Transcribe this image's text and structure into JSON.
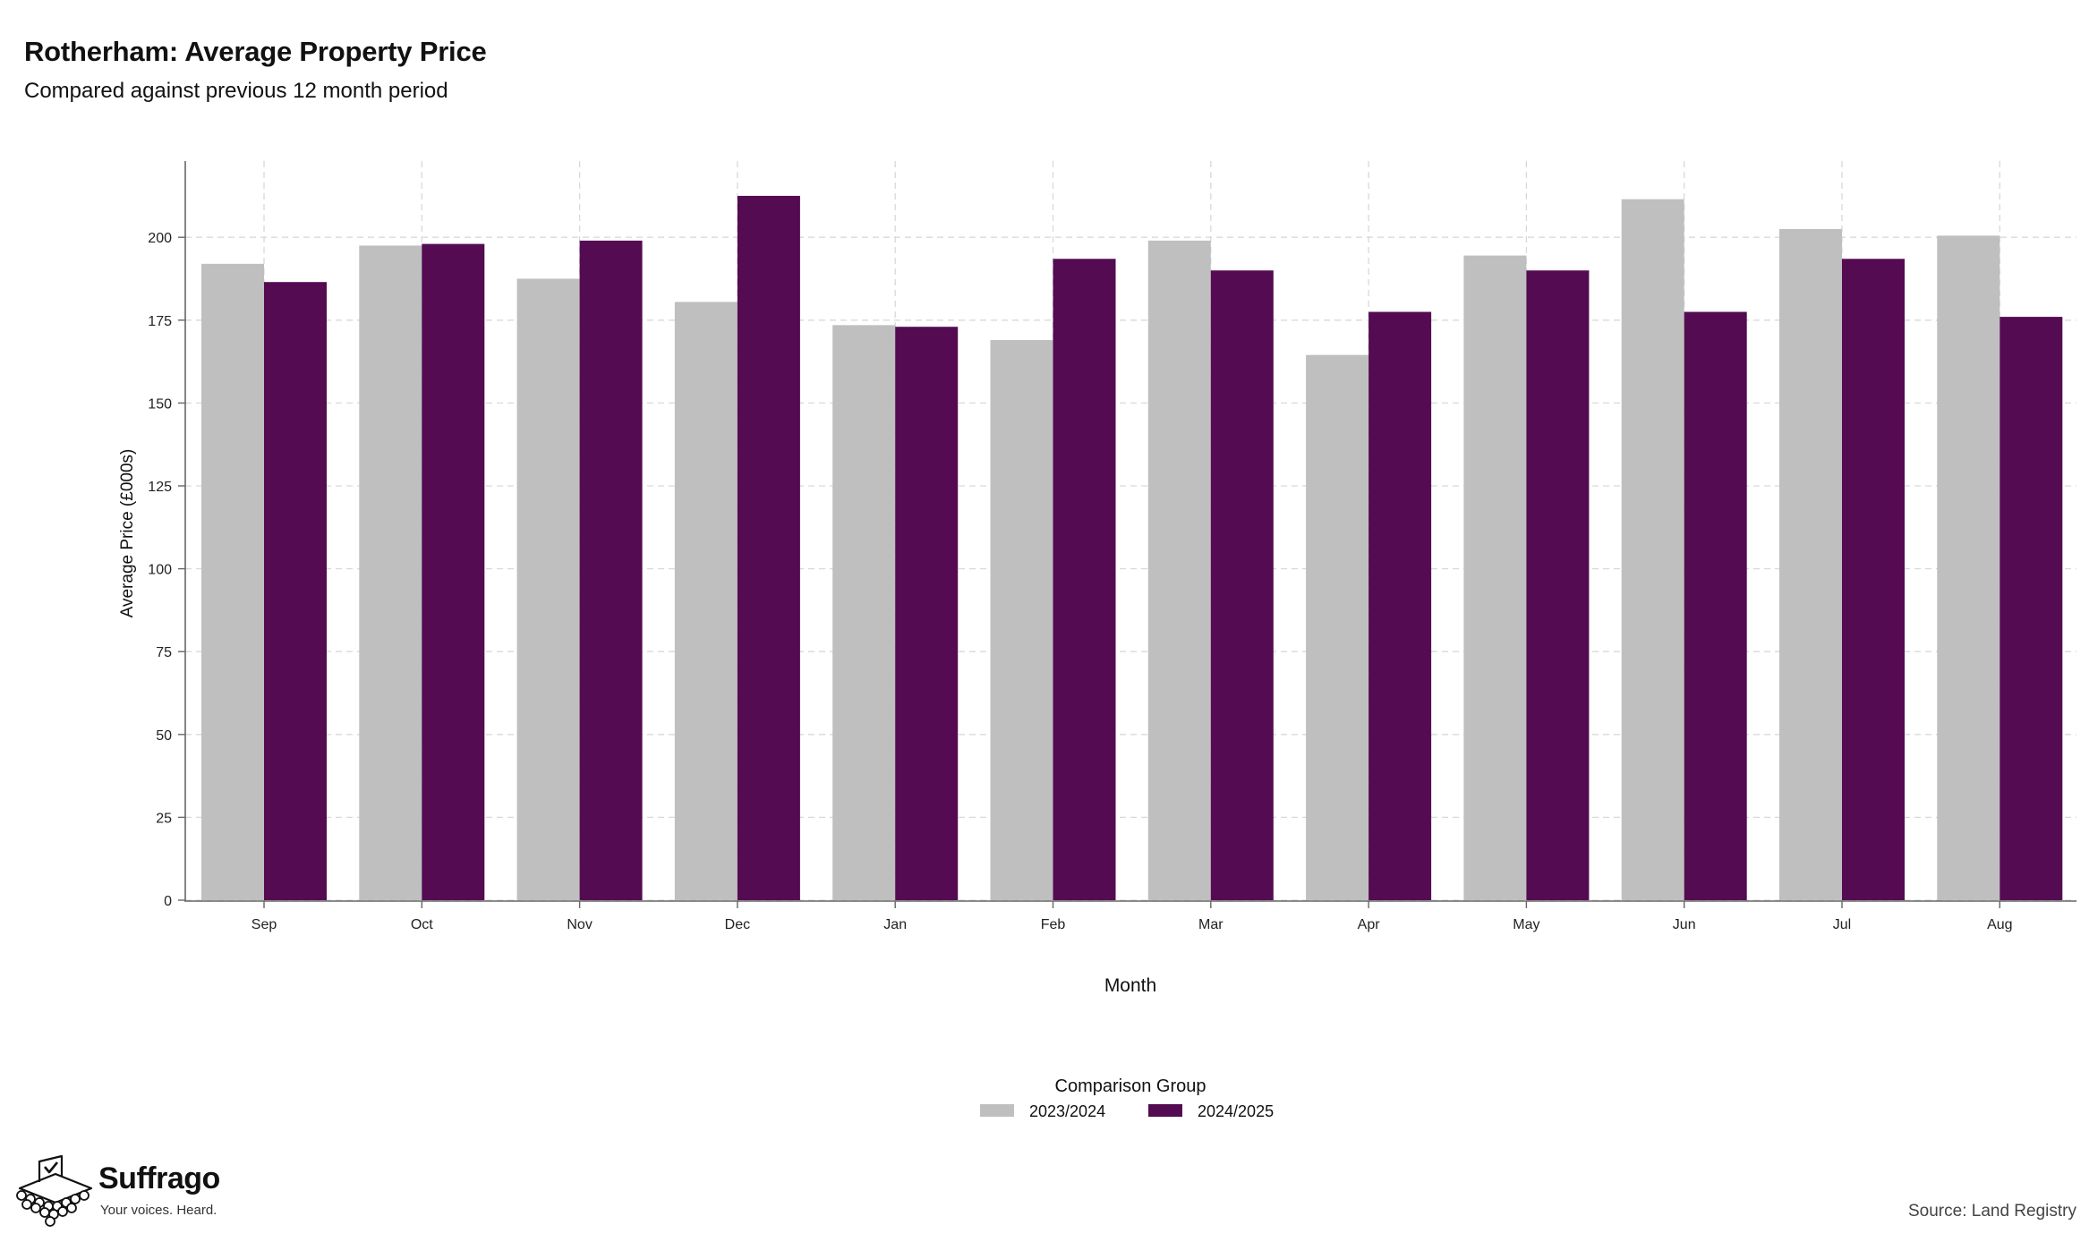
{
  "header": {
    "title": "Rotherham: Average Property Price",
    "subtitle": "Compared against previous 12 month period"
  },
  "chart_data": {
    "type": "bar",
    "categories": [
      "Sep",
      "Oct",
      "Nov",
      "Dec",
      "Jan",
      "Feb",
      "Mar",
      "Apr",
      "May",
      "Jun",
      "Jul",
      "Aug"
    ],
    "series": [
      {
        "name": "2023/2024",
        "color": "#bfbfbf",
        "values": [
          192,
          197.5,
          187.5,
          180.5,
          173.5,
          169,
          199,
          164.5,
          194.5,
          211.5,
          202.5,
          200.5
        ]
      },
      {
        "name": "2024/2025",
        "color": "#540b52",
        "values": [
          186.5,
          198,
          199,
          212.5,
          173,
          193.5,
          190,
          177.5,
          190,
          177.5,
          193.5,
          176
        ]
      }
    ],
    "xlabel": "Month",
    "ylabel": "Average Price (£000s)",
    "ylim": [
      0,
      223
    ],
    "yticks": [
      0,
      25,
      50,
      75,
      100,
      125,
      150,
      175,
      200
    ],
    "grid": true,
    "legend_title": "Comparison Group",
    "legend_position": "bottom-center"
  },
  "branding": {
    "name": "Suffrago",
    "tagline": "Your voices. Heard.",
    "logo_icon": "ballot-box-icon"
  },
  "footer": {
    "source": "Source: Land Registry"
  }
}
